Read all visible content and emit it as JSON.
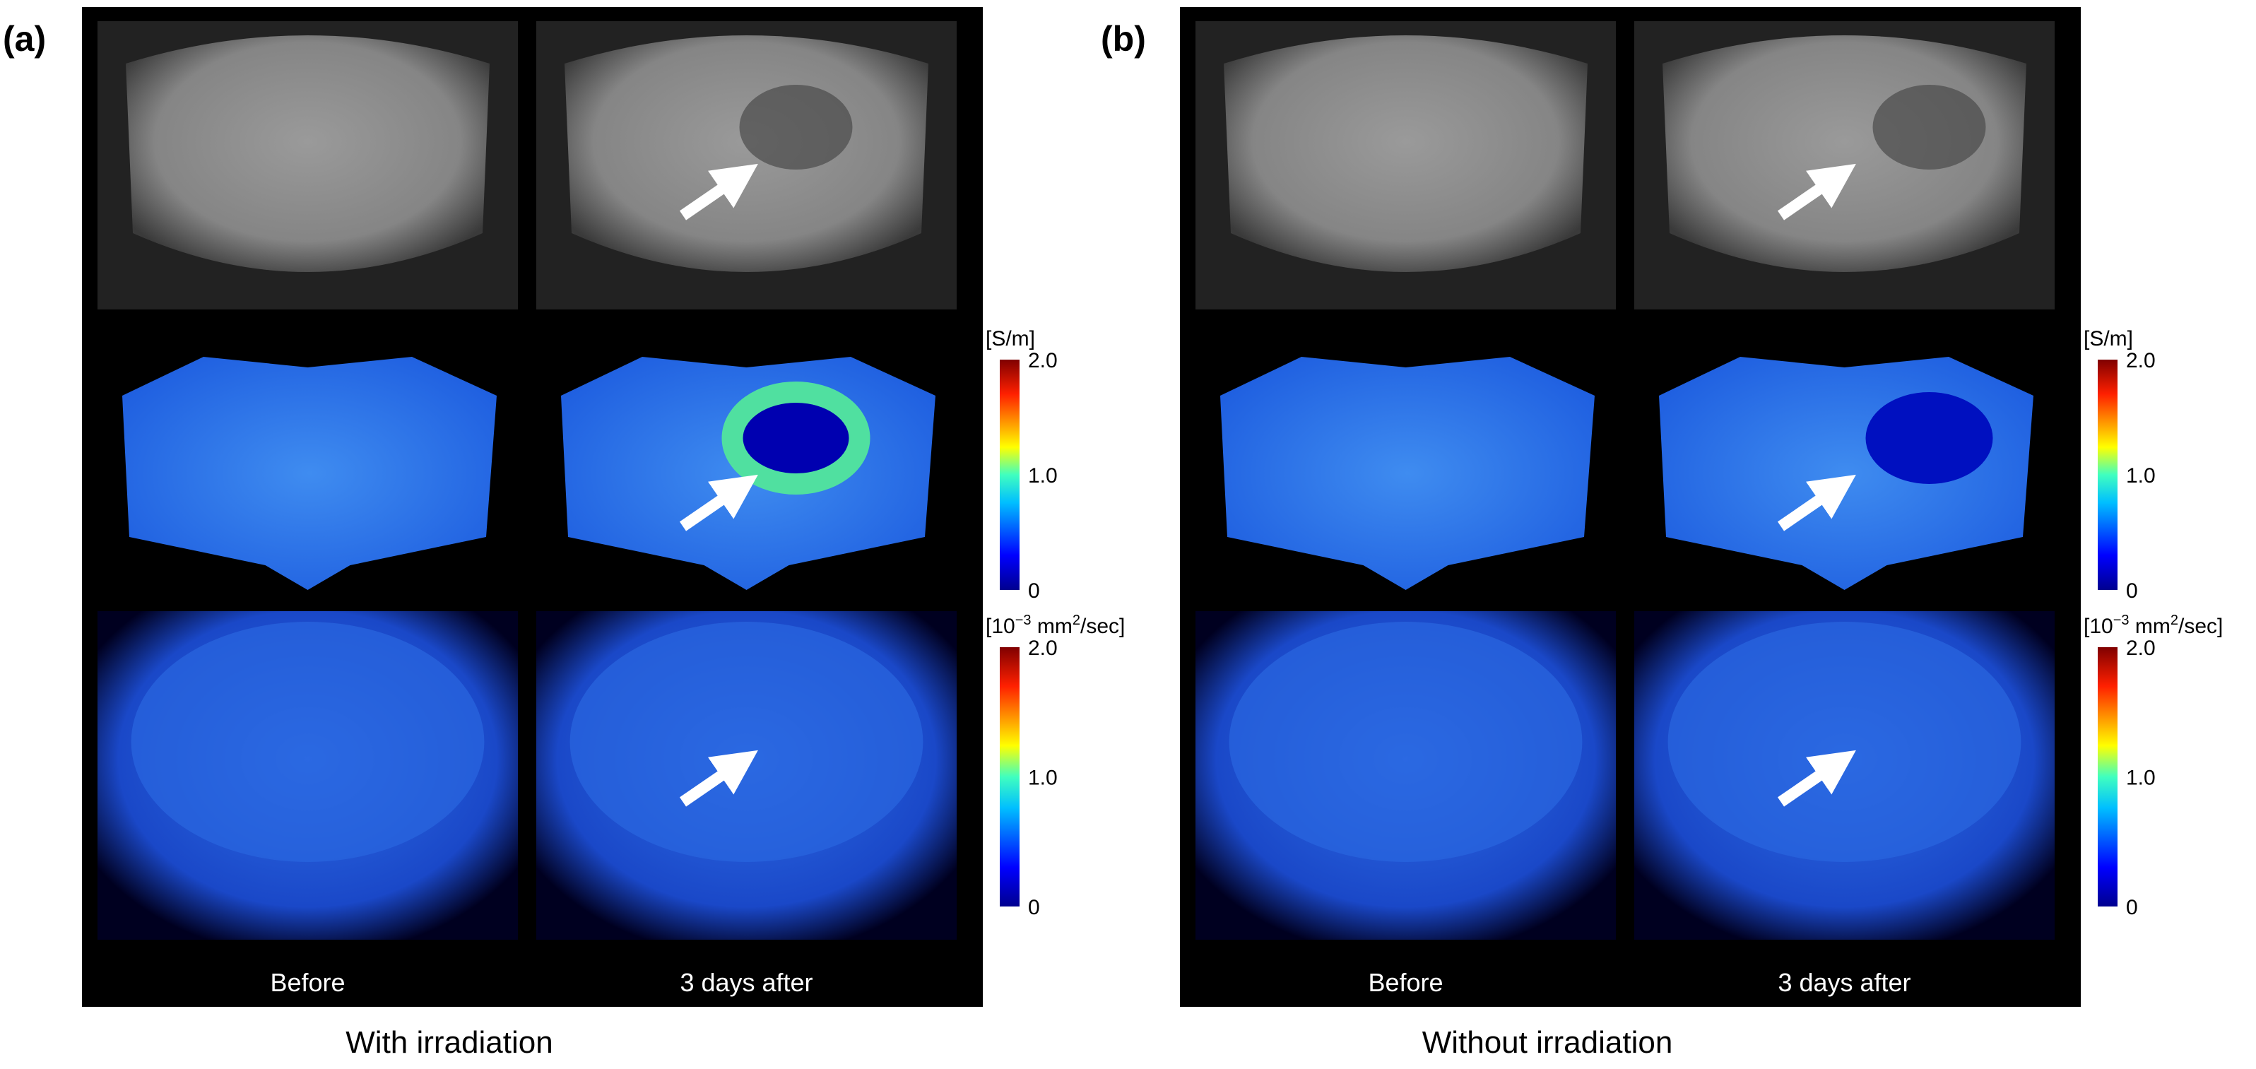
{
  "panels": [
    {
      "label": "(a)",
      "columns": [
        "Before",
        "3 days after"
      ],
      "caption": "With irradiation",
      "colorbars": [
        {
          "unit_parts": [
            "[S/m]"
          ],
          "ticks": [
            "2.0",
            "1.0",
            "0"
          ]
        },
        {
          "unit_parts": [
            "[10",
            "−3",
            " mm",
            "2",
            "/sec]"
          ],
          "ticks": [
            "2.0",
            "1.0",
            "0"
          ]
        }
      ]
    },
    {
      "label": "(b)",
      "columns": [
        "Before",
        "3 days after"
      ],
      "caption": "Without irradiation",
      "colorbars": [
        {
          "unit_parts": [
            "[S/m]"
          ],
          "ticks": [
            "2.0",
            "1.0",
            "0"
          ]
        },
        {
          "unit_parts": [
            "[10",
            "−3",
            " mm",
            "2",
            "/sec]"
          ],
          "ticks": [
            "2.0",
            "1.0",
            "0"
          ]
        }
      ]
    }
  ]
}
